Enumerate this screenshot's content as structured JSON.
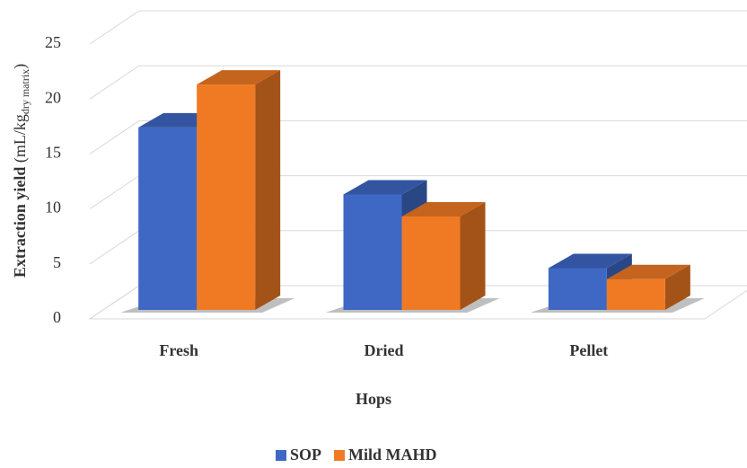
{
  "chart_data": {
    "type": "bar3d",
    "x_label": "Hops",
    "y_label": {
      "main": "Extraction yield",
      "unit": "(mL/kg",
      "subscript": "dry matrix",
      "close": ")"
    },
    "categories": [
      "Fresh",
      "Dried",
      "Pellet"
    ],
    "series": [
      {
        "name": "SOP",
        "color": "#3e68c4",
        "values": [
          16.6,
          10.5,
          3.8
        ]
      },
      {
        "name": "Mild MAHD",
        "color": "#f07a24",
        "values": [
          20.5,
          8.5,
          2.8
        ]
      }
    ],
    "ylim": [
      0,
      25
    ],
    "yticks": [
      0,
      5,
      10,
      15,
      20,
      25
    ],
    "grid": true,
    "legend": "bottom"
  }
}
